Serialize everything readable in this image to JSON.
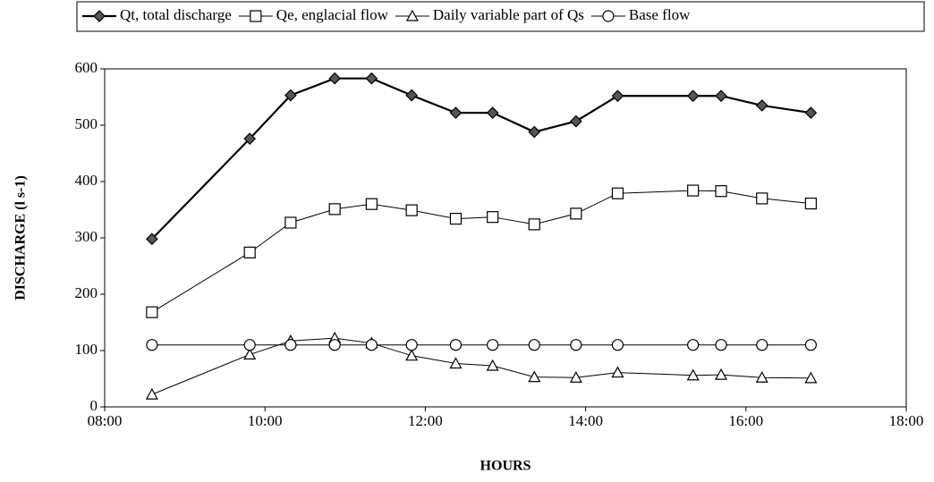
{
  "chart_data": {
    "type": "line",
    "x_label": "HOURS",
    "y_label": "DISCHARGE (l s-1)",
    "x": [
      8.59,
      9.81,
      10.32,
      10.87,
      11.33,
      11.83,
      12.38,
      12.84,
      13.36,
      13.88,
      14.4,
      15.34,
      15.69,
      16.2,
      16.81
    ],
    "series": [
      {
        "name": "Qt, total discharge",
        "color": "#000000",
        "marker": "diamond",
        "values": [
          298,
          476,
          553,
          583,
          583,
          553,
          522,
          522,
          488,
          507,
          552,
          552,
          552,
          535,
          522
        ]
      },
      {
        "name": "Qe, englacial flow",
        "color": "#000000",
        "marker": "square",
        "values": [
          168,
          274,
          327,
          351,
          360,
          349,
          334,
          337,
          324,
          343,
          379,
          384,
          383,
          370,
          361
        ]
      },
      {
        "name": "Daily variable part of Qs",
        "color": "#000000",
        "marker": "triangle",
        "values": [
          22,
          93,
          117,
          122,
          113,
          91,
          77,
          73,
          53,
          52,
          61,
          56,
          57,
          52,
          51
        ]
      },
      {
        "name": "Base flow",
        "color": "#000000",
        "marker": "circle",
        "values": [
          110,
          110,
          110,
          110,
          110,
          110,
          110,
          110,
          110,
          110,
          110,
          110,
          110,
          110,
          110
        ]
      }
    ],
    "xlim": [
      8,
      18
    ],
    "xticks": [
      {
        "value": 8,
        "label": "08:00"
      },
      {
        "value": 10,
        "label": "10:00"
      },
      {
        "value": 12,
        "label": "12:00"
      },
      {
        "value": 14,
        "label": "14:00"
      },
      {
        "value": 16,
        "label": "16:00"
      },
      {
        "value": 18,
        "label": "18:00"
      }
    ],
    "ylim": [
      0,
      600
    ],
    "yticks": [
      0,
      100,
      200,
      300,
      400,
      500,
      600
    ],
    "grid": false,
    "legend": "top"
  }
}
